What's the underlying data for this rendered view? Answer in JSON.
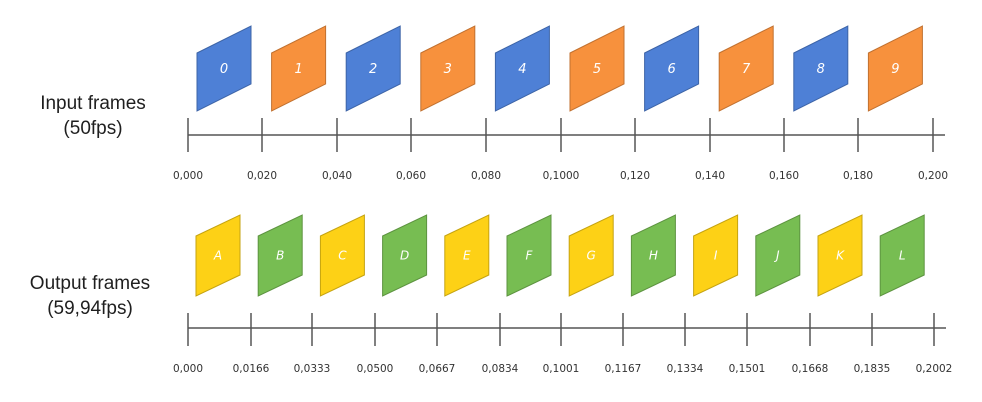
{
  "input": {
    "label_line1": "Input frames",
    "label_line2": "(50fps)",
    "frames": [
      {
        "label": "0",
        "color": "#4e80d6"
      },
      {
        "label": "1",
        "color": "#f7913d"
      },
      {
        "label": "2",
        "color": "#4e80d6"
      },
      {
        "label": "3",
        "color": "#f7913d"
      },
      {
        "label": "4",
        "color": "#4e80d6"
      },
      {
        "label": "5",
        "color": "#f7913d"
      },
      {
        "label": "6",
        "color": "#4e80d6"
      },
      {
        "label": "7",
        "color": "#f7913d"
      },
      {
        "label": "8",
        "color": "#4e80d6"
      },
      {
        "label": "9",
        "color": "#f7913d"
      }
    ],
    "ticks": [
      "0,000",
      "0,020",
      "0,040",
      "0,060",
      "0,080",
      "0,1000",
      "0,120",
      "0,140",
      "0,160",
      "0,180",
      "0,200"
    ]
  },
  "output": {
    "label_line1": "Output frames",
    "label_line2": "(59,94fps)",
    "frames": [
      {
        "label": "A",
        "color": "#fdd116"
      },
      {
        "label": "B",
        "color": "#77bd52"
      },
      {
        "label": "C",
        "color": "#fdd116"
      },
      {
        "label": "D",
        "color": "#77bd52"
      },
      {
        "label": "E",
        "color": "#fdd116"
      },
      {
        "label": "F",
        "color": "#77bd52"
      },
      {
        "label": "G",
        "color": "#fdd116"
      },
      {
        "label": "H",
        "color": "#77bd52"
      },
      {
        "label": "I",
        "color": "#fdd116"
      },
      {
        "label": "J",
        "color": "#77bd52"
      },
      {
        "label": "K",
        "color": "#fdd116"
      },
      {
        "label": "L",
        "color": "#77bd52"
      }
    ],
    "ticks": [
      "0,000",
      "0,0166",
      "0,0333",
      "0,0500",
      "0,0667",
      "0,0834",
      "0,1001",
      "0,1167",
      "0,1334",
      "0,1501",
      "0,1668",
      "0,1835",
      "0,2002"
    ]
  }
}
